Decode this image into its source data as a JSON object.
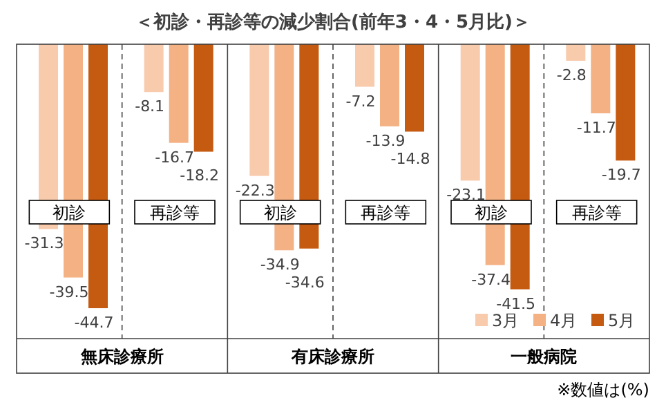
{
  "chart_data": {
    "type": "bar",
    "title": "＜初診・再診等の減少割合(前年3・4・5月比)＞",
    "categories": [
      "初診",
      "再診等",
      "初診",
      "再診等",
      "初診",
      "再診等"
    ],
    "series": [
      {
        "name": "3月",
        "color": "#f8cbad",
        "values": [
          -31.3,
          -8.1,
          -22.3,
          -7.2,
          -23.1,
          -2.8
        ]
      },
      {
        "name": "4月",
        "color": "#f4b183",
        "values": [
          -39.5,
          -16.7,
          -34.9,
          -13.9,
          -37.4,
          -11.7
        ]
      },
      {
        "name": "5月",
        "color": "#c55a11",
        "values": [
          -44.7,
          -18.2,
          -34.6,
          -14.8,
          -41.5,
          -19.7
        ]
      }
    ],
    "data_labels": true,
    "legend": "bottom right",
    "annotations": [
      "無床診療所",
      "有床診療所",
      "一般病院",
      "※数値は(%)"
    ]
  }
}
